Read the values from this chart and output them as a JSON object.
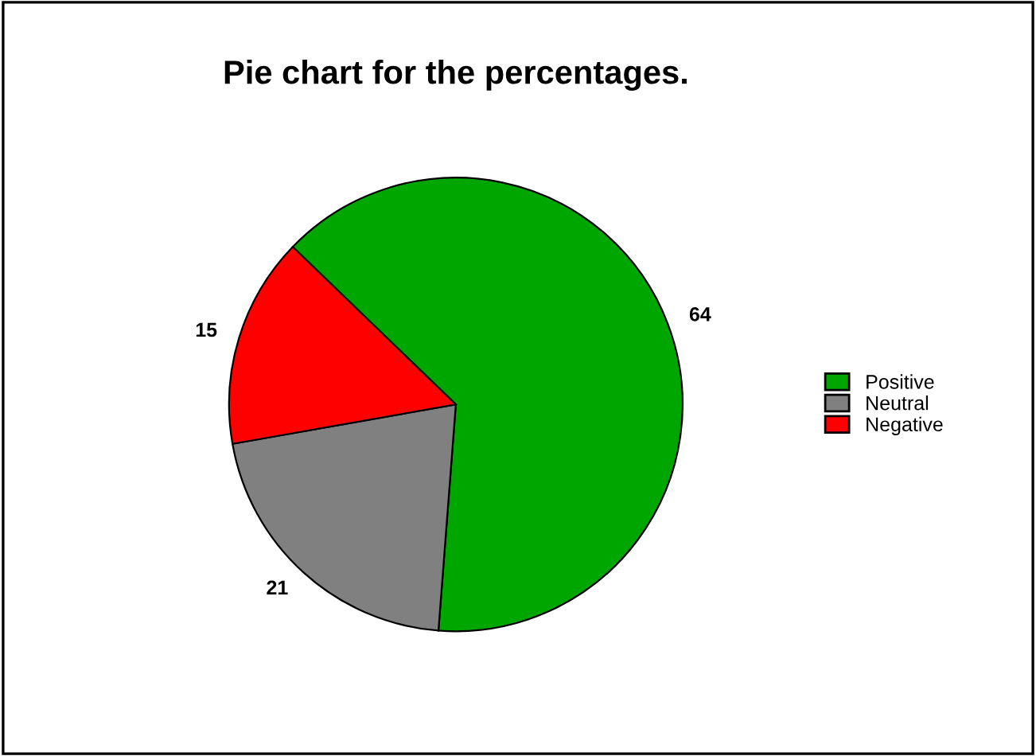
{
  "chart_data": {
    "type": "pie",
    "title": "Pie chart for the percentages.",
    "categories": [
      "Positive",
      "Neutral",
      "Negative"
    ],
    "values": [
      64,
      21,
      15
    ],
    "colors": [
      "#00a600",
      "#808080",
      "#ff0000"
    ],
    "data_labels": true,
    "legend": "right"
  }
}
